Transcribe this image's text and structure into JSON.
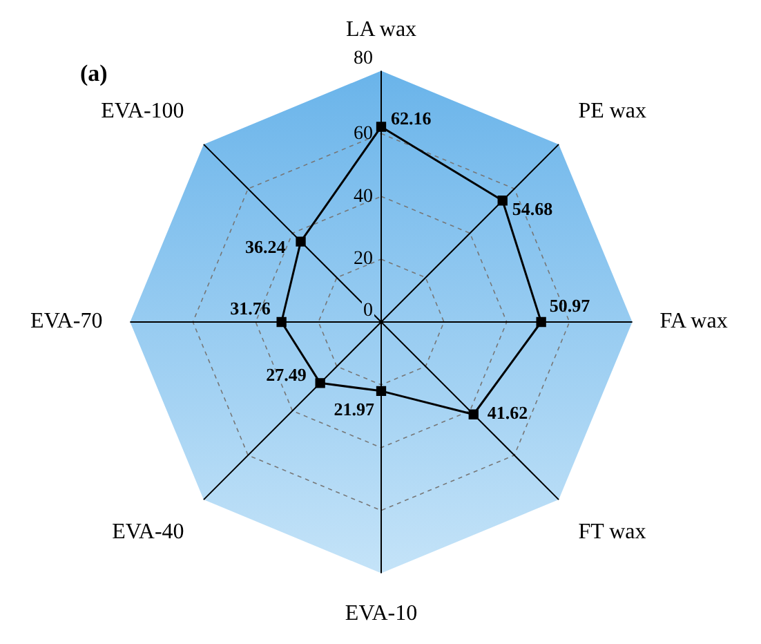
{
  "chart_data": {
    "type": "radar",
    "annotations": [
      "(a)"
    ],
    "categories": [
      "LA wax",
      "PE wax",
      "FA wax",
      "FT wax",
      "EVA-10",
      "EVA-40",
      "EVA-70",
      "EVA-100"
    ],
    "series": [
      {
        "color": "#000000",
        "values": [
          62.16,
          54.68,
          50.97,
          41.62,
          21.97,
          27.49,
          31.76,
          36.24
        ]
      }
    ],
    "ylim": [
      0,
      80
    ],
    "yticks": [
      0,
      20,
      40,
      60,
      80
    ],
    "grid": true,
    "marker": "square",
    "data_labels": true
  }
}
